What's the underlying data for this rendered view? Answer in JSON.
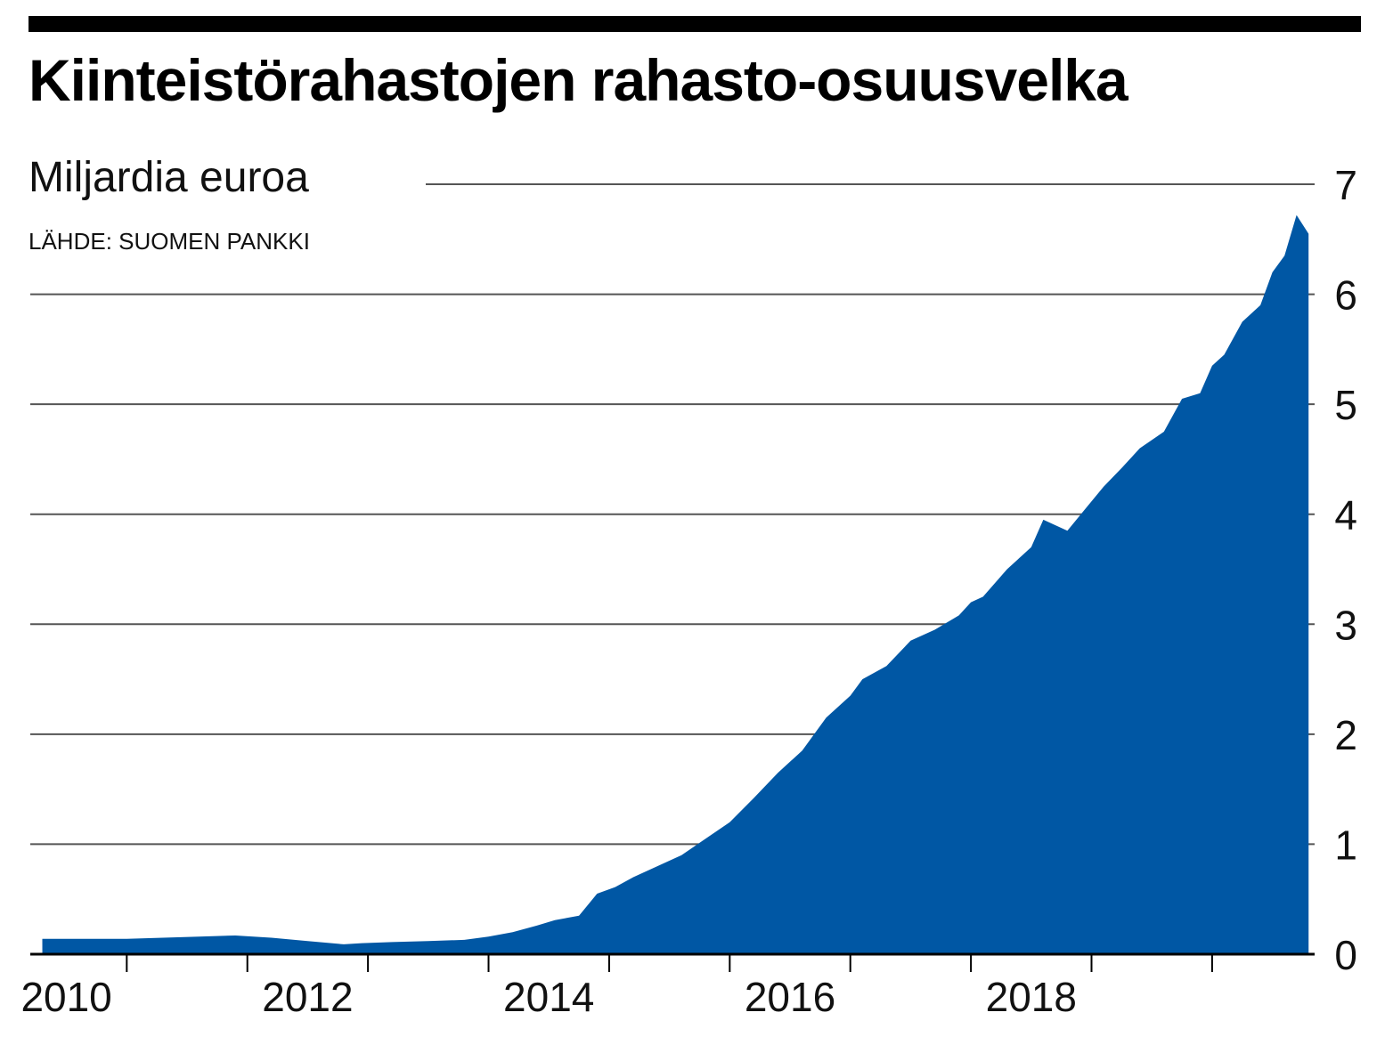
{
  "header": {
    "title": "Kiinteistörahastojen rahasto-osuusvelka",
    "subtitle": "Miljardia euroa",
    "source": "LÄHDE: SUOMEN PANKKI"
  },
  "colors": {
    "area": "#0057a4",
    "gridline": "#555555",
    "text": "#111111"
  },
  "chart_data": {
    "type": "area",
    "title": "Kiinteistörahastojen rahasto-osuusvelka",
    "ylabel": "Miljardia euroa",
    "xlabel": "",
    "ylim": [
      0,
      7
    ],
    "y_ticks": [
      "0",
      "1",
      "2",
      "3",
      "4",
      "5",
      "6",
      "7"
    ],
    "y_axis_side": "right",
    "grid": true,
    "x_ticks": [
      "2010",
      "2012",
      "2014",
      "2016",
      "2018"
    ],
    "xlim": [
      2009.2,
      2019.85
    ],
    "series": [
      {
        "x": [
          2009.3,
          2009.5,
          2009.7,
          2010.0,
          2010.3,
          2010.6,
          2010.9,
          2011.2,
          2011.5,
          2011.8,
          2011.95,
          2012.2,
          2012.5,
          2012.8,
          2013.0,
          2013.2,
          2013.4,
          2013.55,
          2013.75,
          2013.9,
          2014.05,
          2014.2,
          2014.4,
          2014.6,
          2014.8,
          2015.0,
          2015.2,
          2015.4,
          2015.6,
          2015.8,
          2016.0,
          2016.1,
          2016.3,
          2016.5,
          2016.7,
          2016.9,
          2017.0,
          2017.1,
          2017.3,
          2017.5,
          2017.6,
          2017.8,
          2017.95,
          2018.1,
          2018.25,
          2018.4,
          2018.6,
          2018.75,
          2018.9,
          2019.0,
          2019.1,
          2019.25,
          2019.4,
          2019.5,
          2019.6,
          2019.7,
          2019.8
        ],
        "values": [
          0.14,
          0.14,
          0.14,
          0.14,
          0.15,
          0.16,
          0.17,
          0.15,
          0.12,
          0.09,
          0.1,
          0.11,
          0.12,
          0.13,
          0.16,
          0.2,
          0.26,
          0.31,
          0.35,
          0.55,
          0.61,
          0.7,
          0.8,
          0.9,
          1.05,
          1.2,
          1.42,
          1.65,
          1.85,
          2.15,
          2.35,
          2.5,
          2.62,
          2.85,
          2.95,
          3.08,
          3.2,
          3.25,
          3.5,
          3.7,
          3.95,
          3.85,
          4.05,
          4.25,
          4.42,
          4.6,
          4.75,
          5.05,
          5.1,
          5.35,
          5.45,
          5.75,
          5.9,
          6.2,
          6.35,
          6.72,
          6.55
        ]
      }
    ]
  }
}
